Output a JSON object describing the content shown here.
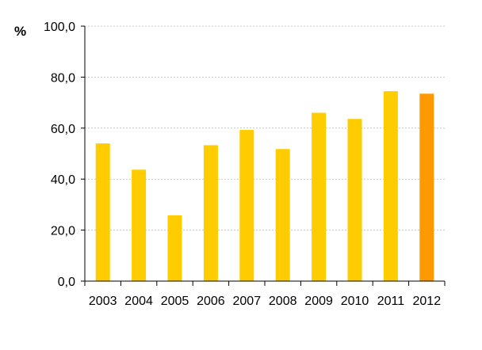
{
  "chart_data": {
    "type": "bar",
    "title": "",
    "xlabel": "",
    "ylabel": "%",
    "ylim": [
      0,
      100
    ],
    "yticks": [
      "0,0",
      "20,0",
      "40,0",
      "60,0",
      "80,0",
      "100,0"
    ],
    "ytick_values": [
      0,
      20,
      40,
      60,
      80,
      100
    ],
    "grid": true,
    "categories": [
      "2003",
      "2004",
      "2005",
      "2006",
      "2007",
      "2008",
      "2009",
      "2010",
      "2011",
      "2012"
    ],
    "values": [
      54.0,
      43.7,
      25.8,
      53.3,
      59.3,
      51.8,
      66.0,
      63.6,
      74.5,
      73.5
    ],
    "colors": {
      "bar": "#FFCC00",
      "highlight": "#FF9900",
      "grid": "#C8C8C8",
      "axis": "#000000"
    },
    "highlight_category": "2012"
  }
}
